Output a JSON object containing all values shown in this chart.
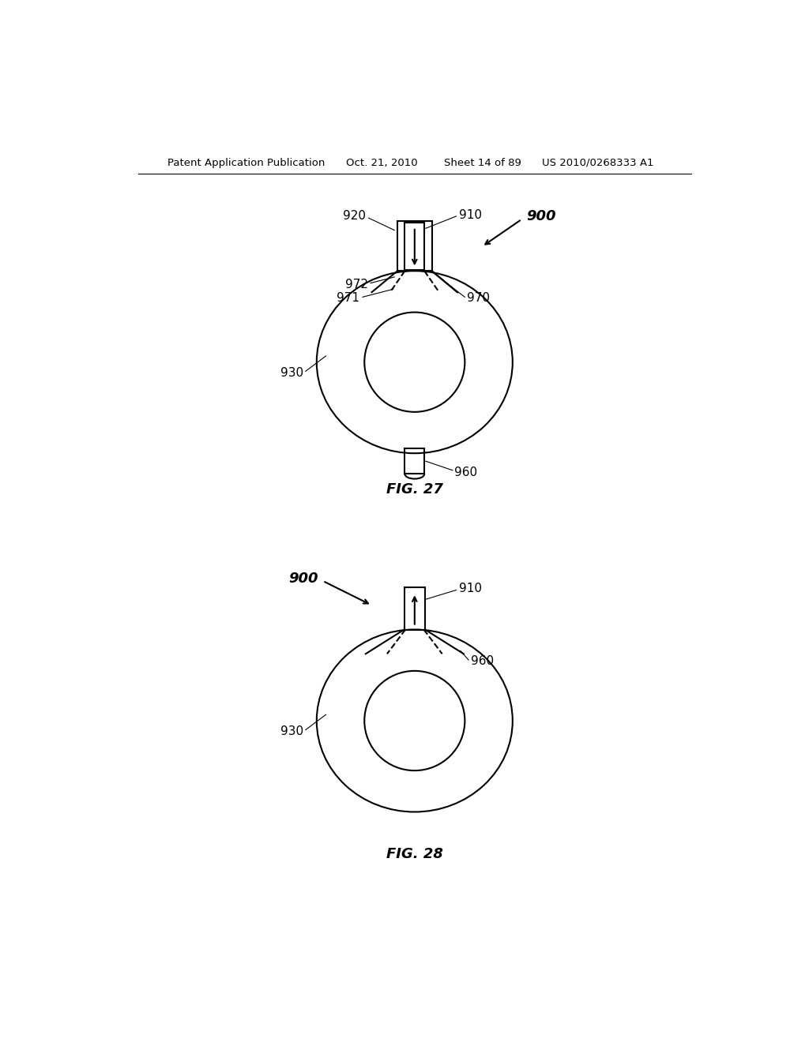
{
  "bg_color": "#ffffff",
  "line_color": "#000000",
  "header_text": "Patent Application Publication",
  "header_date": "Oct. 21, 2010",
  "header_sheet": "Sheet 14 of 89",
  "header_patent": "US 2010/0268333 A1",
  "fig27_label": "FIG. 27",
  "fig28_label": "FIG. 28"
}
